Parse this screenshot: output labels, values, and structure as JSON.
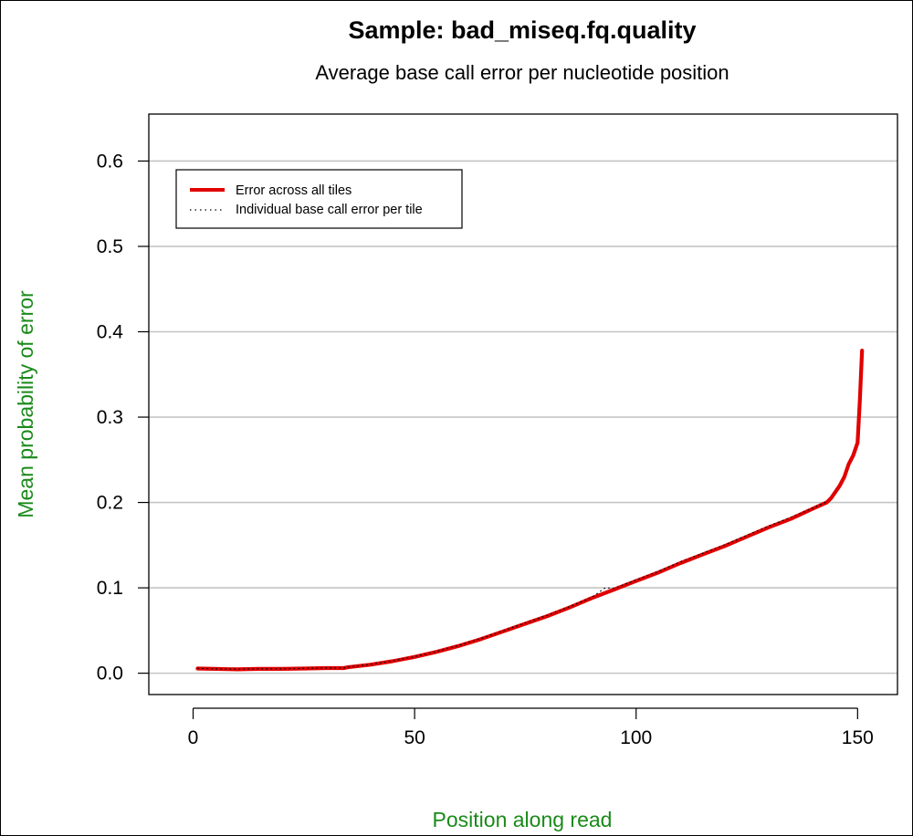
{
  "chart_data": {
    "type": "line",
    "title": "Sample:  bad_miseq.fq.quality",
    "subtitle": "Average base call error per nucleotide position",
    "xlabel": "Position along read",
    "ylabel": "Mean probability of error",
    "xlim": [
      -10,
      159
    ],
    "ylim": [
      -0.025,
      0.655
    ],
    "x_ticks": [
      0,
      50,
      100,
      150
    ],
    "y_ticks": [
      0.0,
      0.1,
      0.2,
      0.3,
      0.4,
      0.5,
      0.6
    ],
    "y_tick_labels": [
      "0.0",
      "0.1",
      "0.2",
      "0.3",
      "0.4",
      "0.5",
      "0.6"
    ],
    "grid": "horizontal",
    "legend": {
      "placement": "top-left",
      "entries": [
        {
          "label": "Error across all tiles",
          "style": "solid"
        },
        {
          "label": "Individual base call error per tile",
          "style": "dotted"
        }
      ]
    },
    "series": [
      {
        "name": "Error across all tiles",
        "style": "solid",
        "color": "#e00000",
        "x": [
          1,
          5,
          10,
          15,
          20,
          25,
          30,
          34,
          35,
          40,
          45,
          50,
          55,
          60,
          65,
          70,
          75,
          80,
          85,
          90,
          95,
          100,
          105,
          110,
          115,
          120,
          125,
          130,
          135,
          140,
          143,
          144,
          146,
          147,
          148,
          149,
          150,
          150.5,
          151
        ],
        "y": [
          0.0055,
          0.005,
          0.0045,
          0.005,
          0.005,
          0.0055,
          0.006,
          0.006,
          0.007,
          0.01,
          0.014,
          0.019,
          0.025,
          0.032,
          0.04,
          0.049,
          0.058,
          0.067,
          0.077,
          0.088,
          0.098,
          0.108,
          0.118,
          0.129,
          0.139,
          0.149,
          0.16,
          0.171,
          0.181,
          0.193,
          0.2,
          0.205,
          0.22,
          0.23,
          0.245,
          0.255,
          0.27,
          0.32,
          0.378
        ]
      },
      {
        "name": "Individual base call error per tile",
        "style": "dotted",
        "color": "#000000",
        "x": [
          1,
          5,
          10,
          15,
          20,
          25,
          30,
          34,
          35,
          40,
          45,
          50,
          55,
          60,
          65,
          70,
          75,
          80,
          85,
          90,
          93,
          95,
          100,
          105,
          110,
          115,
          120,
          125,
          130,
          135,
          140,
          143
        ],
        "y": [
          0.0058,
          0.0052,
          0.0047,
          0.0052,
          0.0052,
          0.0057,
          0.0062,
          0.0062,
          0.0072,
          0.0103,
          0.0143,
          0.0194,
          0.0255,
          0.0326,
          0.0407,
          0.0497,
          0.0588,
          0.0678,
          0.0779,
          0.0889,
          0.1,
          0.0992,
          0.1092,
          0.1193,
          0.1303,
          0.1404,
          0.1505,
          0.1615,
          0.1726,
          0.1827,
          0.1937,
          0.2008
        ]
      }
    ]
  }
}
